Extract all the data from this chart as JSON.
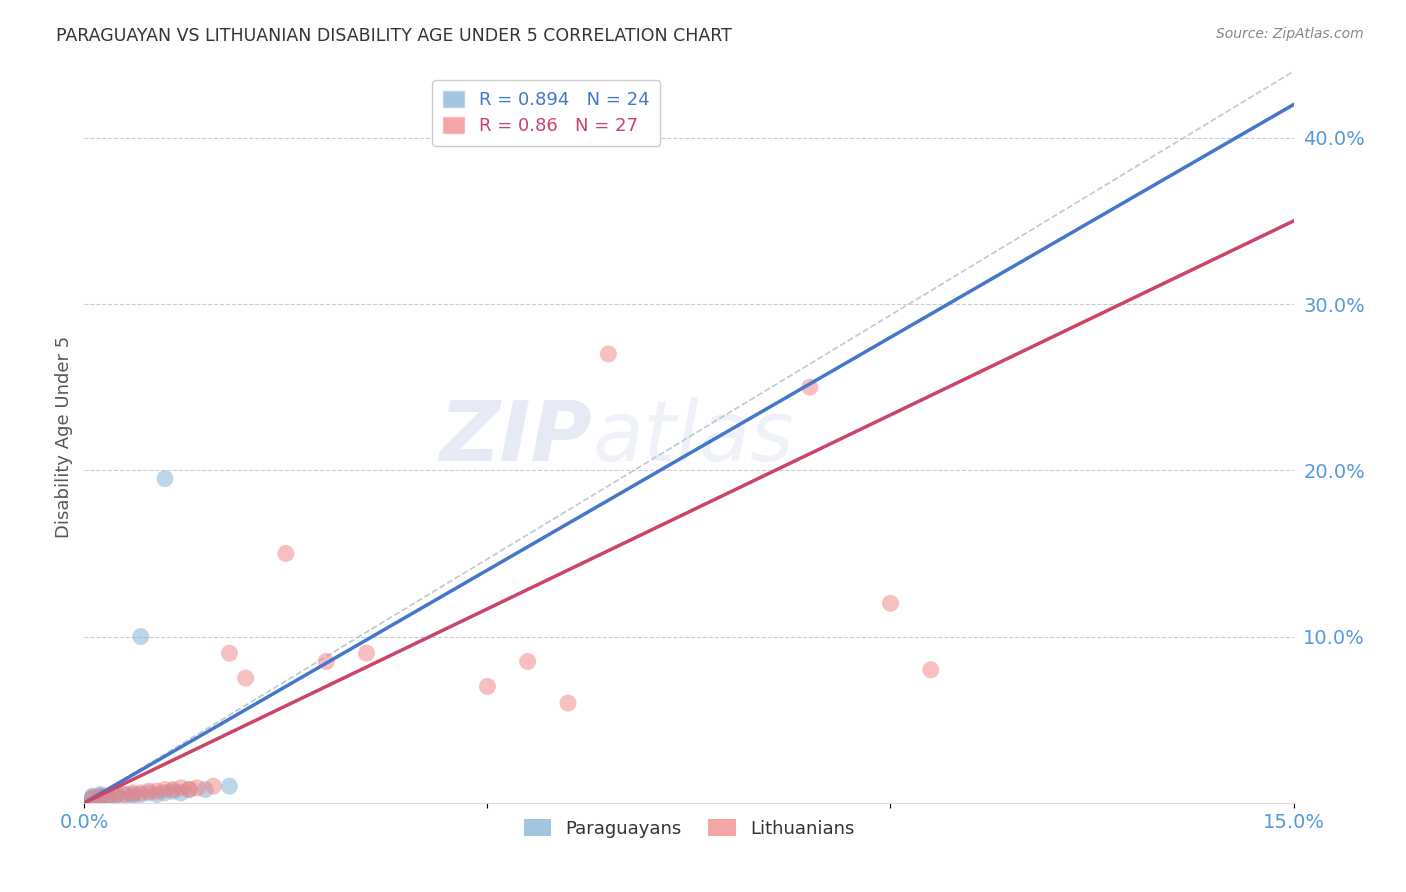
{
  "title": "PARAGUAYAN VS LITHUANIAN DISABILITY AGE UNDER 5 CORRELATION CHART",
  "source": "Source: ZipAtlas.com",
  "ylabel": "Disability Age Under 5",
  "xlim": [
    0.0,
    0.15
  ],
  "ylim": [
    0.0,
    0.44
  ],
  "xticks": [
    0.0,
    0.05,
    0.1,
    0.15
  ],
  "xtick_labels_show": [
    "0.0%",
    "",
    "",
    "15.0%"
  ],
  "yticks_right": [
    0.1,
    0.2,
    0.3,
    0.4
  ],
  "ytick_labels_right": [
    "10.0%",
    "20.0%",
    "30.0%",
    "40.0%"
  ],
  "blue_color": "#7bafd4",
  "pink_color": "#f08080",
  "blue_line_color": "#4477cc",
  "pink_line_color": "#cc4466",
  "blue_R": 0.894,
  "blue_N": 24,
  "pink_R": 0.86,
  "pink_N": 27,
  "legend_label_blue": "Paraguayans",
  "legend_label_pink": "Lithuanians",
  "watermark": "ZIPAtlas",
  "blue_scatter_x": [
    0.001,
    0.001,
    0.001,
    0.002,
    0.002,
    0.002,
    0.003,
    0.003,
    0.004,
    0.004,
    0.005,
    0.006,
    0.006,
    0.007,
    0.008,
    0.009,
    0.01,
    0.011,
    0.012,
    0.013,
    0.015,
    0.018,
    0.007,
    0.01
  ],
  "blue_scatter_y": [
    0.002,
    0.003,
    0.004,
    0.003,
    0.004,
    0.005,
    0.003,
    0.004,
    0.004,
    0.005,
    0.005,
    0.004,
    0.005,
    0.005,
    0.006,
    0.005,
    0.006,
    0.007,
    0.006,
    0.008,
    0.008,
    0.01,
    0.1,
    0.195
  ],
  "pink_scatter_x": [
    0.001,
    0.002,
    0.003,
    0.004,
    0.005,
    0.006,
    0.007,
    0.008,
    0.009,
    0.01,
    0.011,
    0.012,
    0.013,
    0.014,
    0.016,
    0.018,
    0.02,
    0.025,
    0.03,
    0.035,
    0.05,
    0.055,
    0.06,
    0.065,
    0.09,
    0.1,
    0.105
  ],
  "pink_scatter_y": [
    0.003,
    0.004,
    0.004,
    0.005,
    0.005,
    0.006,
    0.006,
    0.007,
    0.007,
    0.008,
    0.008,
    0.009,
    0.008,
    0.009,
    0.01,
    0.09,
    0.075,
    0.15,
    0.085,
    0.09,
    0.07,
    0.085,
    0.06,
    0.27,
    0.25,
    0.12,
    0.08
  ],
  "blue_line_x": [
    0.0,
    0.15
  ],
  "blue_line_y": [
    0.0,
    0.42
  ],
  "pink_line_x": [
    0.0,
    0.15
  ],
  "pink_line_y": [
    0.0,
    0.35
  ],
  "diag_line_x": [
    0.0,
    0.15
  ],
  "diag_line_y": [
    0.0,
    0.44
  ],
  "background_color": "#ffffff",
  "grid_color": "#cccccc",
  "tick_color": "#5599dd",
  "title_color": "#333333",
  "ylabel_color": "#555555",
  "source_color": "#888888"
}
